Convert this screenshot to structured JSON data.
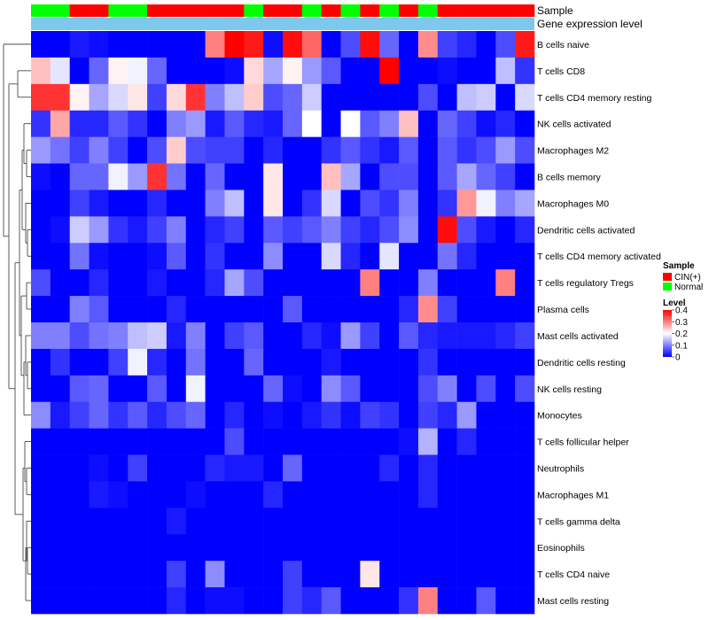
{
  "chart_data": {
    "type": "heatmap",
    "title": "",
    "annotation_tracks": [
      "Sample",
      "Gene expression level"
    ],
    "sample_groups": [
      "N",
      "N",
      "C",
      "C",
      "N",
      "N",
      "C",
      "C",
      "C",
      "C",
      "C",
      "N",
      "C",
      "C",
      "N",
      "C",
      "N",
      "C",
      "N",
      "C",
      "N",
      "C",
      "C",
      "C",
      "C",
      "C"
    ],
    "rows": [
      "B cells naive",
      "T cells CD8",
      "T cells CD4 memory resting",
      "NK cells activated",
      "Macrophages M2",
      "B cells memory",
      "Macrophages M0",
      "Dendritic cells activated",
      "T cells CD4 memory activated",
      "T cells regulatory  Tregs",
      "Plasma cells",
      "Mast cells activated",
      "Dendritic cells resting",
      "NK cells resting",
      "Monocytes",
      "T cells follicular helper",
      "Neutrophils",
      "Macrophages M1",
      "T cells gamma delta",
      "Eosinophils",
      "T cells CD4 naive",
      "Mast cells resting"
    ],
    "values": [
      [
        0.0,
        0.0,
        0.02,
        0.01,
        0.0,
        0.0,
        0.0,
        0.0,
        0.0,
        0.3,
        0.4,
        0.38,
        0.01,
        0.39,
        0.32,
        0.0,
        0.06,
        0.39,
        0.08,
        0.0,
        0.29,
        0.05,
        0.03,
        0.0,
        0.06,
        0.38
      ],
      [
        0.25,
        0.18,
        0.0,
        0.08,
        0.21,
        0.19,
        0.08,
        0.0,
        0.0,
        0.0,
        0.01,
        0.23,
        0.13,
        0.21,
        0.12,
        0.07,
        0.0,
        0.0,
        0.4,
        0.0,
        0.0,
        0.01,
        0.0,
        0.0,
        0.15,
        0.04
      ],
      [
        0.36,
        0.36,
        0.21,
        0.13,
        0.17,
        0.22,
        0.05,
        0.23,
        0.36,
        0.1,
        0.15,
        0.24,
        0.06,
        0.08,
        0.16,
        0.0,
        0.0,
        0.0,
        0.0,
        0.0,
        0.06,
        0.0,
        0.15,
        0.16,
        0.0,
        0.17
      ],
      [
        0.04,
        0.27,
        0.03,
        0.03,
        0.07,
        0.04,
        0.0,
        0.1,
        0.12,
        0.02,
        0.07,
        0.03,
        0.02,
        0.08,
        0.2,
        0.0,
        0.2,
        0.07,
        0.1,
        0.25,
        0.0,
        0.08,
        0.05,
        0.01,
        0.03,
        0.0
      ],
      [
        0.12,
        0.09,
        0.05,
        0.1,
        0.05,
        0.0,
        0.06,
        0.24,
        0.06,
        0.05,
        0.05,
        0.0,
        0.03,
        0.0,
        0.0,
        0.04,
        0.07,
        0.04,
        0.02,
        0.07,
        0.0,
        0.07,
        0.04,
        0.06,
        0.12,
        0.06
      ],
      [
        0.01,
        0.0,
        0.08,
        0.08,
        0.19,
        0.12,
        0.36,
        0.09,
        0.0,
        0.08,
        0.0,
        0.0,
        0.22,
        0.0,
        0.0,
        0.25,
        0.13,
        0.0,
        0.06,
        0.06,
        0.0,
        0.07,
        0.13,
        0.08,
        0.05,
        0.0
      ],
      [
        0.0,
        0.0,
        0.05,
        0.02,
        0.0,
        0.0,
        0.03,
        0.0,
        0.0,
        0.1,
        0.15,
        0.0,
        0.22,
        0.0,
        0.04,
        0.17,
        0.0,
        0.06,
        0.04,
        0.1,
        0.0,
        0.04,
        0.28,
        0.19,
        0.1,
        0.13
      ],
      [
        0.0,
        0.01,
        0.16,
        0.12,
        0.04,
        0.02,
        0.05,
        0.1,
        0.0,
        0.03,
        0.05,
        0.0,
        0.07,
        0.05,
        0.07,
        0.1,
        0.05,
        0.03,
        0.06,
        0.11,
        0.0,
        0.39,
        0.06,
        0.02,
        0.0,
        0.03
      ],
      [
        0.0,
        0.0,
        0.09,
        0.01,
        0.0,
        0.0,
        0.01,
        0.07,
        0.0,
        0.04,
        0.0,
        0.0,
        0.11,
        0.0,
        0.0,
        0.17,
        0.03,
        0.0,
        0.18,
        0.0,
        0.0,
        0.09,
        0.03,
        0.0,
        0.0,
        0.0
      ],
      [
        0.06,
        0.0,
        0.0,
        0.03,
        0.0,
        0.0,
        0.02,
        0.0,
        0.0,
        0.03,
        0.13,
        0.06,
        0.0,
        0.0,
        0.0,
        0.0,
        0.0,
        0.3,
        0.0,
        0.0,
        0.1,
        0.0,
        0.0,
        0.0,
        0.3,
        0.0
      ],
      [
        0.0,
        0.0,
        0.1,
        0.07,
        0.0,
        0.0,
        0.0,
        0.03,
        0.0,
        0.0,
        0.0,
        0.0,
        0.0,
        0.07,
        0.0,
        0.0,
        0.0,
        0.0,
        0.0,
        0.03,
        0.29,
        0.05,
        0.0,
        0.0,
        0.0,
        0.0
      ],
      [
        0.1,
        0.1,
        0.06,
        0.09,
        0.1,
        0.15,
        0.16,
        0.02,
        0.1,
        0.0,
        0.05,
        0.07,
        0.0,
        0.0,
        0.03,
        0.01,
        0.12,
        0.05,
        0.0,
        0.07,
        0.03,
        0.02,
        0.02,
        0.02,
        0.03,
        0.05
      ],
      [
        0.0,
        0.04,
        0.0,
        0.0,
        0.05,
        0.19,
        0.03,
        0.0,
        0.09,
        0.0,
        0.0,
        0.08,
        0.0,
        0.0,
        0.0,
        0.02,
        0.0,
        0.0,
        0.0,
        0.0,
        0.04,
        0.0,
        0.0,
        0.0,
        0.0,
        0.0
      ],
      [
        0.0,
        0.0,
        0.07,
        0.08,
        0.0,
        0.0,
        0.07,
        0.0,
        0.19,
        0.0,
        0.0,
        0.0,
        0.08,
        0.01,
        0.0,
        0.11,
        0.07,
        0.0,
        0.0,
        0.0,
        0.06,
        0.1,
        0.0,
        0.06,
        0.0,
        0.06
      ],
      [
        0.11,
        0.02,
        0.05,
        0.08,
        0.04,
        0.07,
        0.03,
        0.06,
        0.08,
        0.0,
        0.03,
        0.0,
        0.01,
        0.0,
        0.02,
        0.04,
        0.01,
        0.05,
        0.04,
        0.0,
        0.05,
        0.03,
        0.12,
        0.0,
        0.0,
        0.0
      ],
      [
        0.0,
        0.0,
        0.0,
        0.0,
        0.0,
        0.0,
        0.0,
        0.0,
        0.0,
        0.0,
        0.06,
        0.0,
        0.0,
        0.0,
        0.0,
        0.0,
        0.0,
        0.0,
        0.0,
        0.01,
        0.14,
        0.0,
        0.03,
        0.0,
        0.0,
        0.0
      ],
      [
        0.0,
        0.0,
        0.0,
        0.01,
        0.0,
        0.05,
        0.0,
        0.0,
        0.0,
        0.03,
        0.02,
        0.02,
        0.0,
        0.08,
        0.0,
        0.0,
        0.0,
        0.0,
        0.03,
        0.0,
        0.03,
        0.0,
        0.0,
        0.0,
        0.0,
        0.0
      ],
      [
        0.0,
        0.0,
        0.0,
        0.02,
        0.01,
        0.0,
        0.0,
        0.0,
        0.01,
        0.0,
        0.0,
        0.0,
        0.03,
        0.0,
        0.0,
        0.0,
        0.0,
        0.0,
        0.0,
        0.0,
        0.03,
        0.0,
        0.0,
        0.0,
        0.0,
        0.0
      ],
      [
        0.0,
        0.0,
        0.0,
        0.0,
        0.0,
        0.0,
        0.0,
        0.02,
        0.0,
        0.0,
        0.0,
        0.0,
        0.0,
        0.0,
        0.0,
        0.0,
        0.0,
        0.0,
        0.0,
        0.0,
        0.0,
        0.0,
        0.0,
        0.0,
        0.0,
        0.0
      ],
      [
        0.0,
        0.0,
        0.0,
        0.0,
        0.0,
        0.0,
        0.0,
        0.0,
        0.0,
        0.0,
        0.0,
        0.0,
        0.0,
        0.0,
        0.0,
        0.0,
        0.0,
        0.0,
        0.0,
        0.0,
        0.0,
        0.0,
        0.0,
        0.0,
        0.0,
        0.0
      ],
      [
        0.0,
        0.0,
        0.0,
        0.0,
        0.0,
        0.0,
        0.0,
        0.05,
        0.0,
        0.11,
        0.0,
        0.0,
        0.0,
        0.05,
        0.0,
        0.0,
        0.0,
        0.22,
        0.0,
        0.0,
        0.0,
        0.0,
        0.0,
        0.0,
        0.0,
        0.0
      ],
      [
        0.0,
        0.0,
        0.0,
        0.0,
        0.0,
        0.0,
        0.0,
        0.03,
        0.0,
        0.01,
        0.01,
        0.0,
        0.0,
        0.05,
        0.03,
        0.07,
        0.0,
        0.0,
        0.0,
        0.04,
        0.3,
        0.0,
        0.0,
        0.07,
        0.0,
        0.0
      ]
    ],
    "legend": {
      "sample_title": "Sample",
      "sample_entries": [
        {
          "label": "CIN(+)",
          "color": "#ff0000"
        },
        {
          "label": "Normal",
          "color": "#00ff00"
        }
      ],
      "level_title": "Level",
      "level_ticks": [
        "0.4",
        "0.3",
        "0.2",
        "0.1",
        "0"
      ],
      "level_range": [
        0,
        0.4
      ]
    },
    "colors": {
      "low": "#0000ff",
      "mid": "#ffffff",
      "high": "#ff0000",
      "expression_track": "#7ec8ee",
      "sample_cin": "#ff0000",
      "sample_normal": "#00ff00"
    }
  }
}
